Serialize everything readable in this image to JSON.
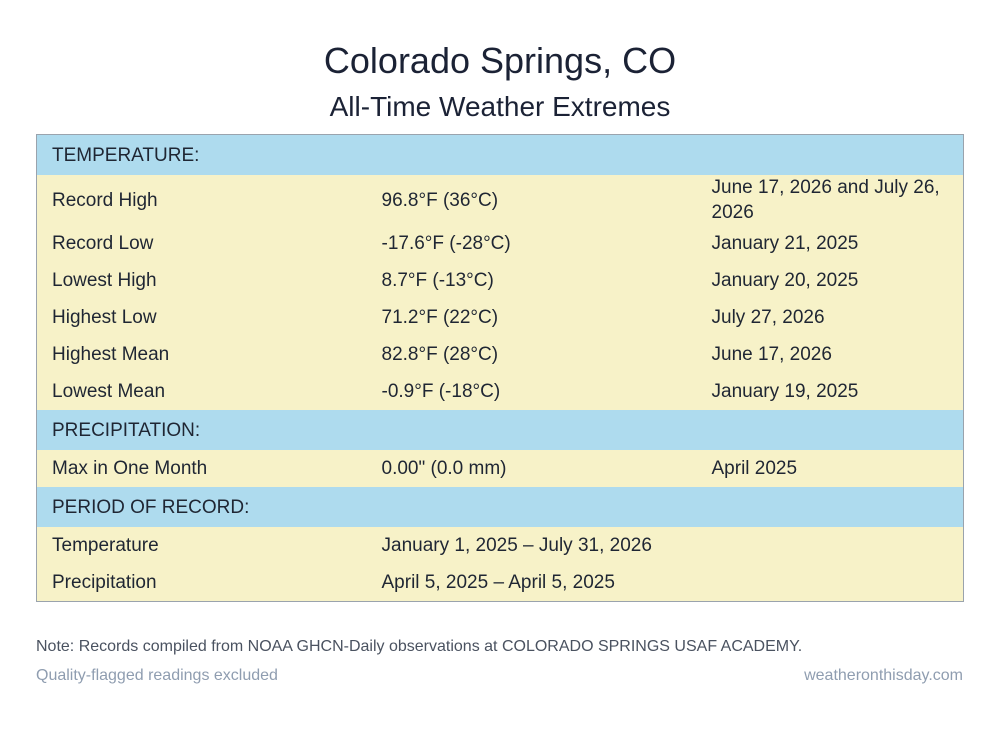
{
  "header": {
    "title": "Colorado Springs, CO",
    "subtitle": "All-Time Weather Extremes"
  },
  "sections": [
    {
      "label": "TEMPERATURE:",
      "rows": [
        [
          "Record High",
          "96.8°F (36°C)",
          "June 17, 2026 and July 26, 2026"
        ],
        [
          "Record Low",
          "-17.6°F (-28°C)",
          "January 21, 2025"
        ],
        [
          "Lowest High",
          "8.7°F (-13°C)",
          "January 20, 2025"
        ],
        [
          "Highest Low",
          "71.2°F (22°C)",
          "July 27, 2026"
        ],
        [
          "Highest Mean",
          "82.8°F (28°C)",
          "June 17, 2026"
        ],
        [
          "Lowest Mean",
          "-0.9°F (-18°C)",
          "January 19, 2025"
        ]
      ]
    },
    {
      "label": "PRECIPITATION:",
      "rows": [
        [
          "Max in One Month",
          "0.00\" (0.0 mm)",
          "April 2025"
        ]
      ]
    },
    {
      "label": "PERIOD OF RECORD:",
      "rows": [
        [
          "Temperature",
          "January 1, 2025 – July 31, 2026"
        ],
        [
          "Precipitation",
          "April 5, 2025 – April 5, 2025"
        ]
      ]
    }
  ],
  "footer": {
    "note": "Note: Records compiled from NOAA GHCN-Daily observations at COLORADO SPRINGS USAF ACADEMY.",
    "qualifier": "Quality-flagged readings excluded",
    "source": "weatheronthisday.com"
  }
}
